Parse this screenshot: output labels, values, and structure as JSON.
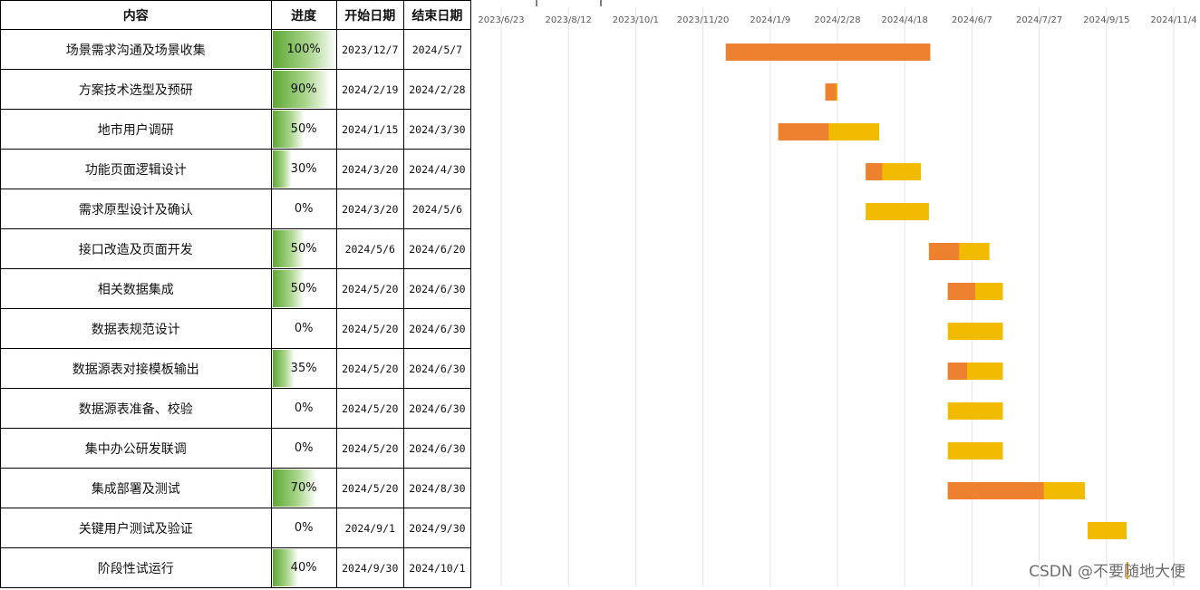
{
  "table": {
    "headers": {
      "name": "内容",
      "progress": "进度",
      "start": "开始日期",
      "end": "结束日期"
    },
    "rows": [
      {
        "name": "场景需求沟通及场景收集",
        "progress": "100%",
        "start": "2023/12/7",
        "end": "2024/5/7"
      },
      {
        "name": "方案技术选型及预研",
        "progress": "90%",
        "start": "2024/2/19",
        "end": "2024/2/28"
      },
      {
        "name": "地市用户调研",
        "progress": "50%",
        "start": "2024/1/15",
        "end": "2024/3/30"
      },
      {
        "name": "功能页面逻辑设计",
        "progress": "30%",
        "start": "2024/3/20",
        "end": "2024/4/30"
      },
      {
        "name": "需求原型设计及确认",
        "progress": "0%",
        "start": "2024/3/20",
        "end": "2024/5/6"
      },
      {
        "name": "接口改造及页面开发",
        "progress": "50%",
        "start": "2024/5/6",
        "end": "2024/6/20"
      },
      {
        "name": "相关数据集成",
        "progress": "50%",
        "start": "2024/5/20",
        "end": "2024/6/30"
      },
      {
        "name": "数据表规范设计",
        "progress": "0%",
        "start": "2024/5/20",
        "end": "2024/6/30"
      },
      {
        "name": "数据源表对接模板输出",
        "progress": "35%",
        "start": "2024/5/20",
        "end": "2024/6/30"
      },
      {
        "name": "数据源表准备、校验",
        "progress": "0%",
        "start": "2024/5/20",
        "end": "2024/6/30"
      },
      {
        "name": "集中办公研发联调",
        "progress": "0%",
        "start": "2024/5/20",
        "end": "2024/6/30"
      },
      {
        "name": "集成部署及测试",
        "progress": "70%",
        "start": "2024/5/20",
        "end": "2024/8/30"
      },
      {
        "name": "关键用户测试及验证",
        "progress": "0%",
        "start": "2024/9/1",
        "end": "2024/9/30"
      },
      {
        "name": "阶段性试运行",
        "progress": "40%",
        "start": "2024/9/30",
        "end": "2024/10/1"
      }
    ]
  },
  "chart_data": {
    "type": "bar",
    "subtype": "gantt",
    "x_ticks": [
      "2023/6/23",
      "2023/8/12",
      "2023/10/1",
      "2023/11/20",
      "2024/1/9",
      "2024/2/28",
      "2024/4/18",
      "2024/6/7",
      "2024/7/27",
      "2024/9/15",
      "2024/11/4"
    ],
    "xlim": [
      "2023/6/23",
      "2024/11/4"
    ],
    "categories": [
      "场景需求沟通及场景收集",
      "方案技术选型及预研",
      "地市用户调研",
      "功能页面逻辑设计",
      "需求原型设计及确认",
      "接口改造及页面开发",
      "相关数据集成",
      "数据表规范设计",
      "数据源表对接模板输出",
      "数据源表准备、校验",
      "集中办公研发联调",
      "集成部署及测试",
      "关键用户测试及验证",
      "阶段性试运行"
    ],
    "start": [
      "2023/12/7",
      "2024/2/19",
      "2024/1/15",
      "2024/3/20",
      "2024/3/20",
      "2024/5/6",
      "2024/5/20",
      "2024/5/20",
      "2024/5/20",
      "2024/5/20",
      "2024/5/20",
      "2024/5/20",
      "2024/9/1",
      "2024/9/30"
    ],
    "end": [
      "2024/5/7",
      "2024/2/28",
      "2024/3/30",
      "2024/4/30",
      "2024/5/6",
      "2024/6/20",
      "2024/6/30",
      "2024/6/30",
      "2024/6/30",
      "2024/6/30",
      "2024/6/30",
      "2024/8/30",
      "2024/9/30",
      "2024/10/1"
    ],
    "progress": [
      1.0,
      0.9,
      0.5,
      0.3,
      0,
      0.5,
      0.5,
      0,
      0.35,
      0,
      0,
      0.7,
      0,
      0.4
    ],
    "grid": true,
    "colors": {
      "completed": "#ed8130",
      "remaining": "#f1bc00",
      "progress_fill": "#5ea836",
      "grid": "#e3e3e3"
    }
  },
  "watermark": "CSDN @不要随地大便"
}
